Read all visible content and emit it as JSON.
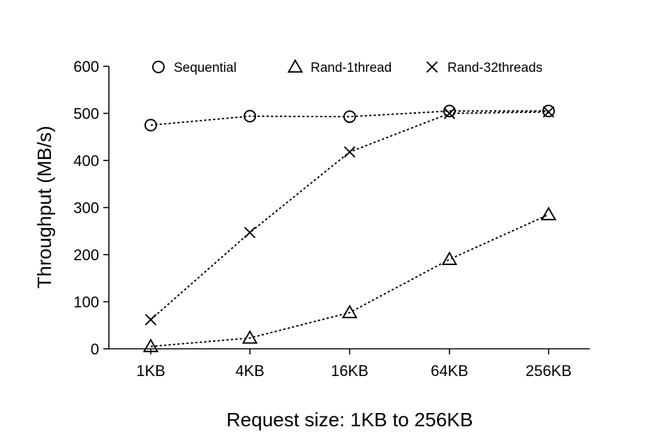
{
  "chart_data": {
    "type": "line",
    "title": "",
    "xlabel": "Request size: 1KB to 256KB",
    "ylabel": "Throughput (MB/s)",
    "categories": [
      "1KB",
      "4KB",
      "16KB",
      "64KB",
      "256KB"
    ],
    "ylim": [
      0,
      600
    ],
    "yticks": [
      0,
      100,
      200,
      300,
      400,
      500,
      600
    ],
    "grid": false,
    "legend_position": "top",
    "series": [
      {
        "name": "Sequential",
        "marker": "circle",
        "values": [
          475,
          494,
          493,
          505,
          505
        ]
      },
      {
        "name": "Rand-1thread",
        "marker": "triangle",
        "values": [
          5,
          23,
          77,
          190,
          285
        ]
      },
      {
        "name": "Rand-32threads",
        "marker": "x",
        "values": [
          62,
          247,
          418,
          500,
          503
        ]
      }
    ]
  }
}
